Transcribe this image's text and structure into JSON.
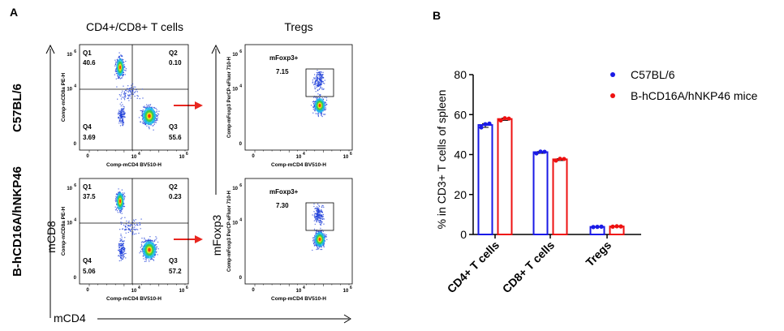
{
  "panel_a": {
    "label": "A",
    "col1_title": "CD4+/CD8+ T cells",
    "col2_title": "Tregs",
    "row_labels": [
      "C57BL/6",
      "B-hCD16A/hNKP46"
    ],
    "y_axis_label": "mCD8",
    "x_axis_label": "mCD4",
    "y_axis2_label": "mFoxp3",
    "plot_ylabel_cd8": "Comp-mCD8a PE-H",
    "plot_xlabel_cd4": "Comp-mCD4 BV510-H",
    "plot_ylabel_foxp3": "Comp-mFoxp3 PerCP-eFluor 710-H",
    "gate_label": "mFoxp3+",
    "quadrant_names": [
      "Q1",
      "Q2",
      "Q4",
      "Q3"
    ],
    "tick_labels": [
      "10",
      "4",
      "10",
      "6"
    ],
    "tick_zero": "0",
    "rows": [
      {
        "q1": "40.6",
        "q2": "0.10",
        "q4": "3.69",
        "q3": "55.6",
        "foxp3": "7.15"
      },
      {
        "q1": "37.5",
        "q2": "0.23",
        "q4": "5.06",
        "q3": "57.2",
        "foxp3": "7.30"
      }
    ],
    "colors": {
      "arrow": "#e8261f",
      "dots_blue": "#1f3fd8",
      "dots_hot": "#ff3a00"
    }
  },
  "chart_data": {
    "type": "bar",
    "panel_label": "B",
    "categories": [
      "CD4+ T cells",
      "CD8+ T cells",
      "Tregs"
    ],
    "ylabel": "% in CD3+ T cells of spleen",
    "ylim": [
      0,
      80
    ],
    "yticks": [
      "0",
      "20",
      "40",
      "60",
      "80"
    ],
    "legend_position": "top-right",
    "series": [
      {
        "name": "C57BL/6",
        "color": "#1a1ae6",
        "values": [
          54.8,
          41.2,
          3.8
        ],
        "points": [
          [
            53.6,
            55.2,
            55.5
          ],
          [
            40.6,
            41.5,
            41.4
          ],
          [
            3.7,
            3.8,
            3.9
          ]
        ]
      },
      {
        "name": "B-hCD16A/hNKP46 mice",
        "color": "#ee1111",
        "values": [
          57.8,
          37.6,
          4.0
        ],
        "points": [
          [
            57.1,
            58.2,
            58.0
          ],
          [
            37.0,
            37.9,
            37.8
          ],
          [
            3.9,
            4.1,
            4.0
          ]
        ]
      }
    ]
  }
}
